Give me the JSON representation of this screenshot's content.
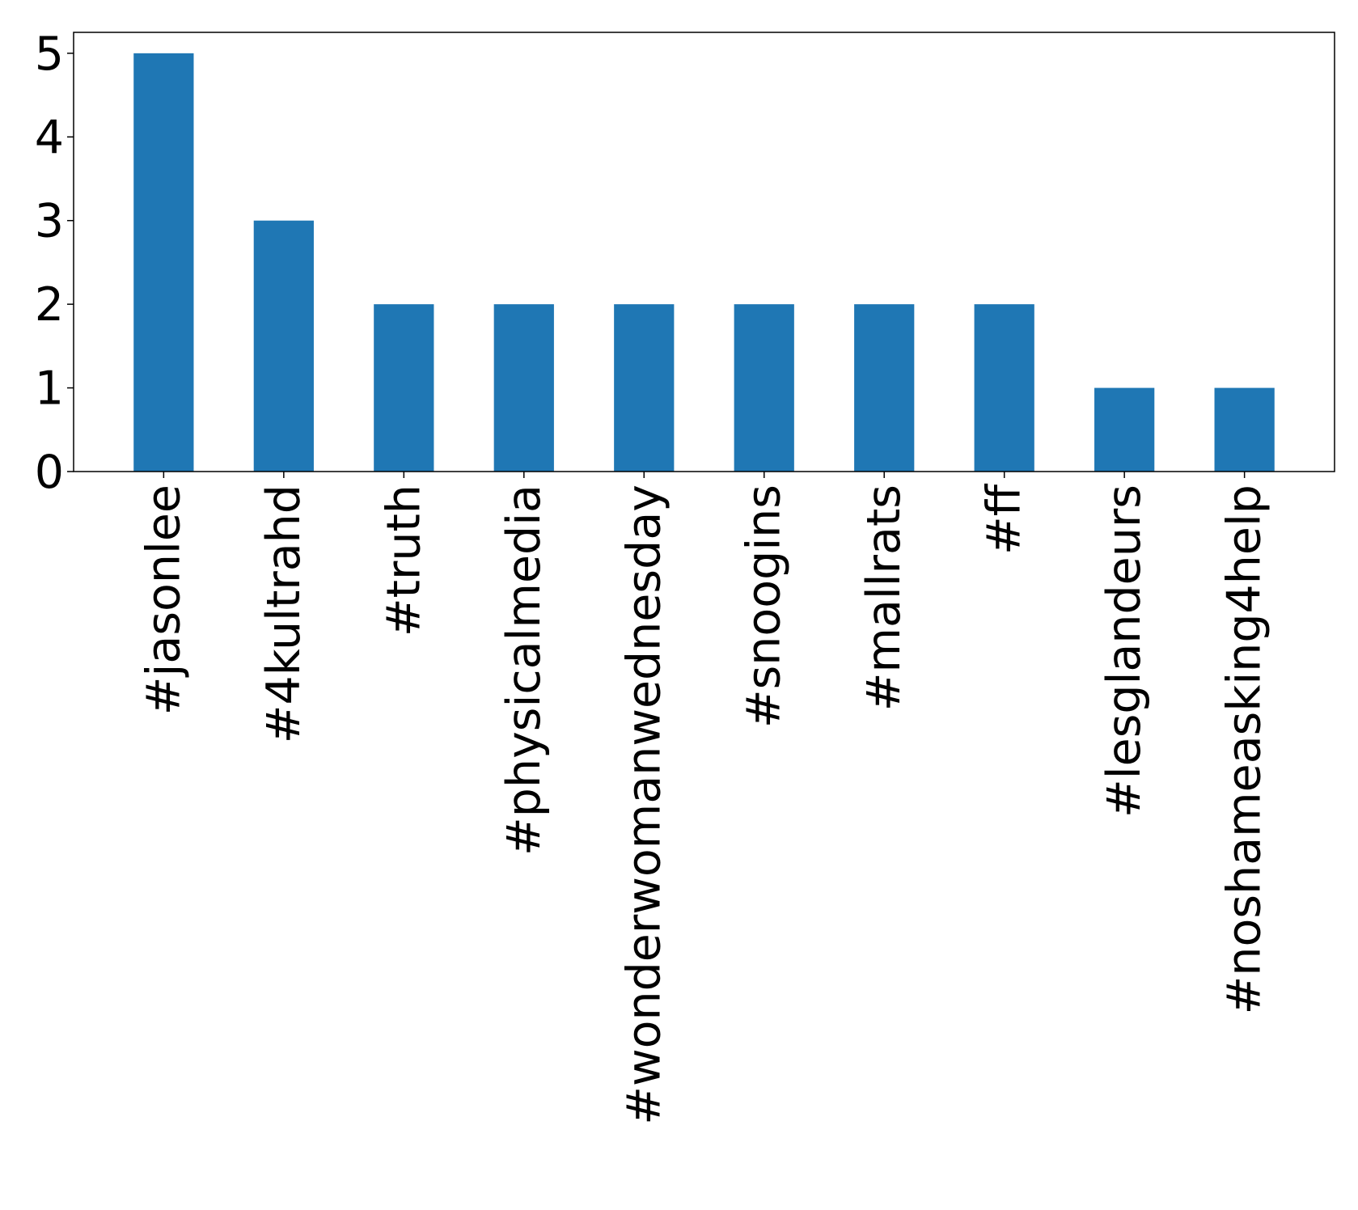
{
  "chart_data": {
    "type": "bar",
    "title": "",
    "xlabel": "",
    "ylabel": "",
    "categories": [
      "#jasonlee",
      "#4kultrahd",
      "#truth",
      "#physicalmedia",
      "#wonderwomanwednesday",
      "#snoogins",
      "#mallrats",
      "#ff",
      "#lesglandeurs",
      "#noshameasking4help"
    ],
    "values": [
      5,
      3,
      2,
      2,
      2,
      2,
      2,
      2,
      1,
      1
    ],
    "ylim": [
      0,
      5.25
    ],
    "yticks": [
      0,
      1,
      2,
      3,
      4,
      5
    ],
    "bar_color": "#1f77b4",
    "grid": false,
    "legend": "none"
  }
}
